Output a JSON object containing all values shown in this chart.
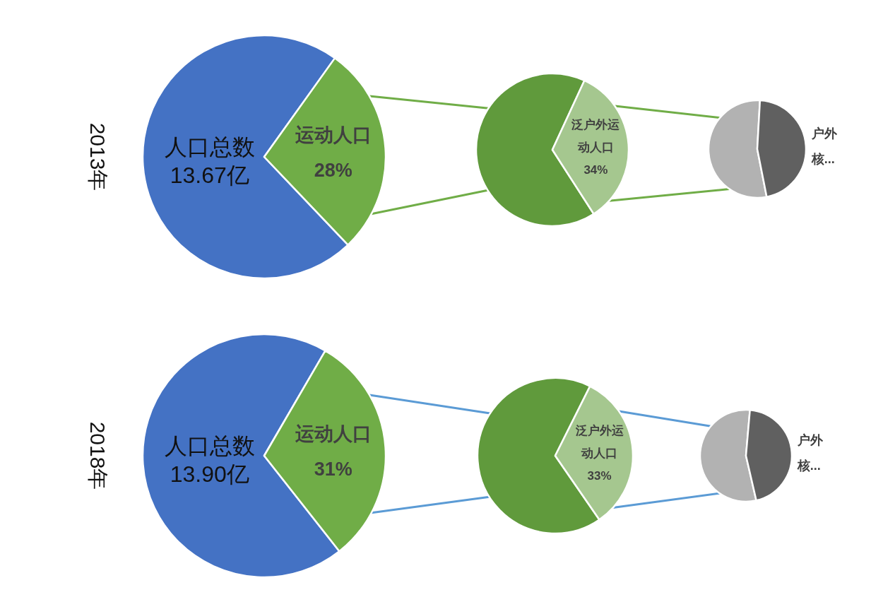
{
  "chart_data": [
    {
      "type": "pie",
      "title": "2013年",
      "categories": [
        "人口总数 13.67亿",
        "运动人口"
      ],
      "values": [
        72,
        28
      ],
      "colors": [
        "#4472c4",
        "#70ad47"
      ],
      "value_labels": [
        null,
        "28%"
      ]
    },
    {
      "type": "pie",
      "categories": [
        null,
        "泛户外运动人口"
      ],
      "values": [
        66,
        34
      ],
      "colors": [
        "#609a3c",
        "#a5c78f"
      ],
      "value_labels": [
        null,
        "34%"
      ]
    },
    {
      "type": "pie",
      "categories": [
        null,
        "户外核..."
      ],
      "values": [
        54,
        46
      ],
      "colors": [
        "#b2b2b2",
        "#606060"
      ]
    },
    {
      "type": "pie",
      "title": "2018年",
      "categories": [
        "人口总数 13.90亿",
        "运动人口"
      ],
      "values": [
        69,
        31
      ],
      "colors": [
        "#4472c4",
        "#70ad47"
      ],
      "value_labels": [
        null,
        "31%"
      ]
    },
    {
      "type": "pie",
      "categories": [
        null,
        "泛户外运动人口"
      ],
      "values": [
        67,
        33
      ],
      "colors": [
        "#609a3c",
        "#a5c78f"
      ],
      "value_labels": [
        null,
        "33%"
      ]
    },
    {
      "type": "pie",
      "categories": [
        null,
        "户外核..."
      ],
      "values": [
        55,
        45
      ],
      "colors": [
        "#b2b2b2",
        "#606060"
      ]
    }
  ]
}
